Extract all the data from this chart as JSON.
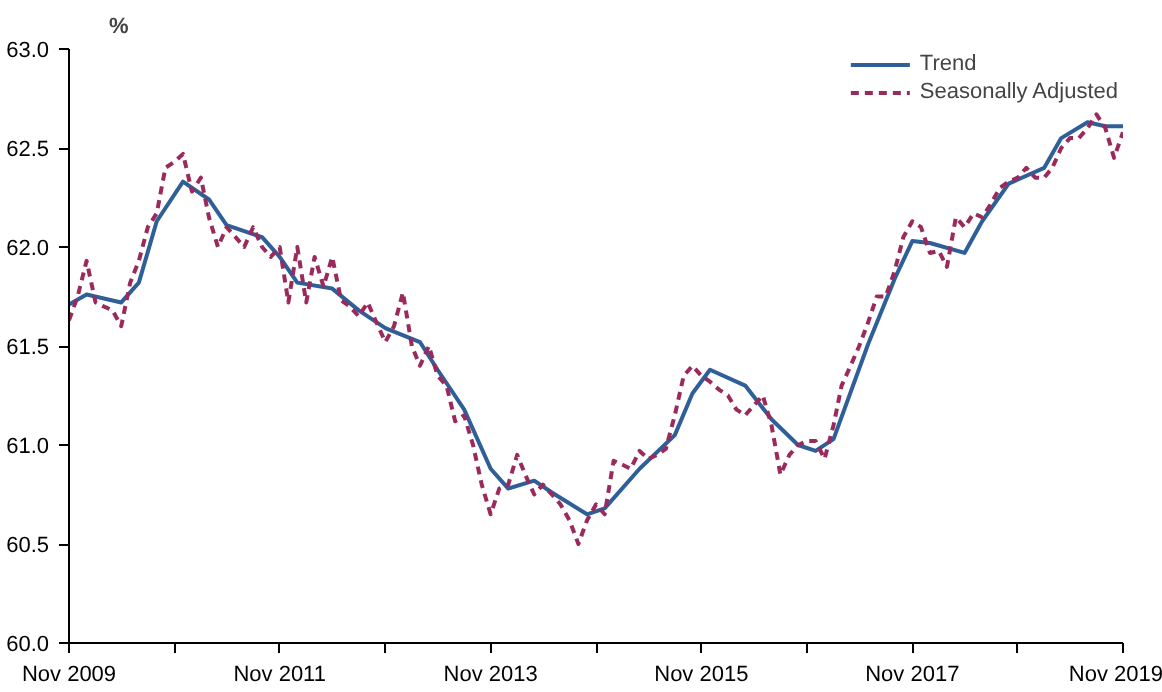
{
  "chart_data": {
    "type": "line",
    "ylabel": "%",
    "xlim": [
      "2009-11",
      "2019-11"
    ],
    "ylim": [
      60.0,
      63.0
    ],
    "yticks": [
      {
        "value": 60,
        "label": "60.0"
      },
      {
        "value": 60.5,
        "label": "60.5"
      },
      {
        "value": 61,
        "label": "61.0"
      },
      {
        "value": 61.5,
        "label": "61.5"
      },
      {
        "value": 62,
        "label": "62.0"
      },
      {
        "value": 62.5,
        "label": "62.5"
      },
      {
        "value": 63,
        "label": "63.0"
      }
    ],
    "xticks": [
      {
        "value": "2009-11",
        "label": "Nov 2009"
      },
      {
        "value": "2010-11",
        "label": null
      },
      {
        "value": "2011-11",
        "label": "Nov 2011"
      },
      {
        "value": "2012-11",
        "label": null
      },
      {
        "value": "2013-11",
        "label": "Nov 2013"
      },
      {
        "value": "2014-11",
        "label": null
      },
      {
        "value": "2015-11",
        "label": "Nov 2015"
      },
      {
        "value": "2016-11",
        "label": null
      },
      {
        "value": "2017-11",
        "label": "Nov 2017"
      },
      {
        "value": "2018-11",
        "label": null
      },
      {
        "value": "2019-11",
        "label": "Nov 2019"
      }
    ],
    "grid": false,
    "legend": "top right",
    "marker": "none",
    "series": [
      {
        "name": "Trend",
        "color": "#2e5f98",
        "line_style": "solid",
        "x": [
          "2009-11",
          "2010-01",
          "2010-05",
          "2010-07",
          "2010-09",
          "2010-12",
          "2011-03",
          "2011-05",
          "2011-09",
          "2011-11",
          "2012-01",
          "2012-05",
          "2012-08",
          "2012-11",
          "2013-03",
          "2013-05",
          "2013-08",
          "2013-11",
          "2014-01",
          "2014-04",
          "2014-06",
          "2014-10",
          "2014-12",
          "2015-04",
          "2015-08",
          "2015-10",
          "2015-12",
          "2016-04",
          "2016-07",
          "2016-10",
          "2016-12",
          "2017-02",
          "2017-06",
          "2017-09",
          "2017-11",
          "2018-01",
          "2018-05",
          "2018-07",
          "2018-10",
          "2019-02",
          "2019-04",
          "2019-07",
          "2019-09",
          "2019-11"
        ],
        "values": [
          61.71,
          61.76,
          61.72,
          61.82,
          62.13,
          62.33,
          62.24,
          62.11,
          62.05,
          61.95,
          61.82,
          61.79,
          61.68,
          61.59,
          61.52,
          61.38,
          61.18,
          60.88,
          60.78,
          60.82,
          60.76,
          60.65,
          60.68,
          60.88,
          61.05,
          61.26,
          61.38,
          61.3,
          61.13,
          61.0,
          60.97,
          61.03,
          61.51,
          61.84,
          62.03,
          62.02,
          61.97,
          62.13,
          62.32,
          62.4,
          62.55,
          62.63,
          62.61,
          62.61
        ]
      },
      {
        "name": "Seasonally Adjusted",
        "color": "#9b2a5c",
        "line_style": "dashed",
        "x": [
          "2009-11",
          "2009-12",
          "2010-01",
          "2010-02",
          "2010-03",
          "2010-04",
          "2010-05",
          "2010-06",
          "2010-07",
          "2010-08",
          "2010-09",
          "2010-10",
          "2010-11",
          "2010-12",
          "2011-01",
          "2011-02",
          "2011-03",
          "2011-04",
          "2011-05",
          "2011-06",
          "2011-07",
          "2011-08",
          "2011-09",
          "2011-10",
          "2011-11",
          "2011-12",
          "2012-01",
          "2012-02",
          "2012-03",
          "2012-04",
          "2012-05",
          "2012-06",
          "2012-07",
          "2012-08",
          "2012-09",
          "2012-10",
          "2012-11",
          "2012-12",
          "2013-01",
          "2013-02",
          "2013-03",
          "2013-04",
          "2013-05",
          "2013-06",
          "2013-07",
          "2013-08",
          "2013-09",
          "2013-10",
          "2013-11",
          "2013-12",
          "2014-01",
          "2014-02",
          "2014-03",
          "2014-04",
          "2014-05",
          "2014-06",
          "2014-07",
          "2014-08",
          "2014-09",
          "2014-10",
          "2014-11",
          "2014-12",
          "2015-01",
          "2015-02",
          "2015-03",
          "2015-04",
          "2015-05",
          "2015-06",
          "2015-07",
          "2015-08",
          "2015-09",
          "2015-10",
          "2015-11",
          "2015-12",
          "2016-01",
          "2016-02",
          "2016-03",
          "2016-04",
          "2016-05",
          "2016-06",
          "2016-07",
          "2016-08",
          "2016-09",
          "2016-10",
          "2016-11",
          "2016-12",
          "2017-01",
          "2017-02",
          "2017-03",
          "2017-04",
          "2017-05",
          "2017-06",
          "2017-07",
          "2017-08",
          "2017-09",
          "2017-10",
          "2017-11",
          "2017-12",
          "2018-01",
          "2018-02",
          "2018-03",
          "2018-04",
          "2018-05",
          "2018-06",
          "2018-07",
          "2018-08",
          "2018-09",
          "2018-10",
          "2018-11",
          "2018-12",
          "2019-01",
          "2019-02",
          "2019-03",
          "2019-04",
          "2019-05",
          "2019-06",
          "2019-07",
          "2019-08",
          "2019-09",
          "2019-10",
          "2019-11"
        ],
        "values": [
          61.63,
          61.75,
          61.93,
          61.72,
          61.7,
          61.68,
          61.6,
          61.82,
          61.93,
          62.1,
          62.17,
          62.4,
          62.43,
          62.47,
          62.28,
          62.35,
          62.15,
          62.0,
          62.1,
          62.05,
          62.0,
          62.1,
          62.0,
          61.95,
          62.0,
          61.72,
          62.0,
          61.72,
          61.95,
          61.8,
          61.95,
          61.73,
          61.7,
          61.65,
          61.72,
          61.62,
          61.52,
          61.6,
          61.77,
          61.5,
          61.4,
          61.5,
          61.35,
          61.3,
          61.12,
          61.15,
          61.0,
          60.8,
          60.65,
          60.78,
          60.8,
          60.95,
          60.85,
          60.75,
          60.8,
          60.75,
          60.7,
          60.62,
          60.5,
          60.62,
          60.7,
          60.65,
          60.92,
          60.9,
          60.88,
          60.97,
          60.93,
          60.95,
          60.98,
          61.15,
          61.35,
          61.4,
          61.35,
          61.32,
          61.28,
          61.25,
          61.18,
          61.15,
          61.2,
          61.25,
          61.1,
          60.85,
          60.95,
          61.0,
          61.02,
          61.02,
          60.93,
          61.1,
          61.3,
          61.4,
          61.5,
          61.62,
          61.75,
          61.75,
          61.88,
          62.05,
          62.13,
          62.1,
          61.97,
          61.98,
          61.9,
          62.15,
          62.1,
          62.17,
          62.15,
          62.22,
          62.3,
          62.33,
          62.35,
          62.4,
          62.35,
          62.35,
          62.4,
          62.5,
          62.55,
          62.55,
          62.6,
          62.67,
          62.6,
          62.45,
          62.58
        ]
      }
    ]
  }
}
